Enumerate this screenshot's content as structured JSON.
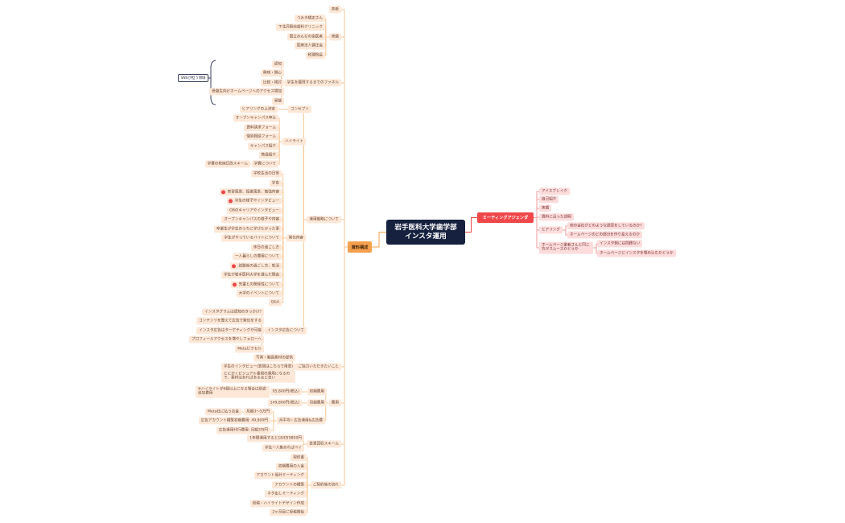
{
  "central": {
    "line1": "岩手医科大学歯学部",
    "line2": "インスタ運用"
  },
  "root": "資料構成",
  "agenda": {
    "title": "ミーティングアジェンダ",
    "items": [
      "アイスブレイク",
      "自己紹介",
      "実績",
      "資料に沿った説明",
      "ヒアリング",
      "ホームページ業者さんと同じ方がスムーズかどうか"
    ],
    "hearing": [
      "他の会社がどのような提案をしているのか?",
      "ホームページのどの部分を作り変えるのか"
    ],
    "hp": [
      "インスタ側には問題ない",
      "ホームページにインスタを埋め込むかどうか"
    ]
  },
  "sections": {
    "cover": "表紙",
    "results": "実績",
    "results_items": [
      "つみき矯正さん",
      "下北沢駅前歯科クリニック",
      "国立みんなの歯医者",
      "医療法人健正会",
      "税理院長"
    ],
    "funnel": "学生を獲得するまでのファネル",
    "funnel_items": [
      "認知",
      "興味・関心",
      "比較・検討",
      "受験生向けホームページへのアクセス増加",
      "受験"
    ],
    "sns_label": "SNSが担う領域",
    "strategy": "運用戦略について",
    "concept": "コンセプト",
    "concept_item": "ヒアリングの上決定",
    "highlight": "ハイライト",
    "highlight_items": [
      "オープンキャンパス申込",
      "資料請求フォーム",
      "個別相談フォーム",
      "キャンパス紹介",
      "教員紹介",
      "学費について"
    ],
    "tuition_scheme": "学費の校納日改スキーム",
    "content": "発信内容",
    "content_items": [
      "学校生活の日常",
      "学食",
      "実習風景、授業風景、勉強内容",
      "学生の様子やインタビュー",
      "OBのキャリアやインタビュー",
      "オープンキャンパスの様子や内容",
      "卒業生が学生のうちに学びたかった事",
      "学生がやっているバイトについて",
      "休日の過ごし方",
      "一人暮らしの費用について",
      "試験後の過ごし方、就活",
      "学生が岩手医科大学を選んだ理由",
      "先輩との関係性について",
      "大学のイベントについて",
      "Q&A"
    ],
    "ads": "インスタ広告について",
    "ads_items": [
      "インスタグラムは認知のきっかけ?",
      "コンテンツを整えて広告で発信をする",
      "インスタ広告はターゲティングが可能",
      "プロフィールアクセスを増やしフォローへ",
      "Metaピクセル"
    ],
    "cooperation": "ご協力いただきたいこと",
    "cooperation_items": [
      "写真・動画素材の提供",
      "学生のインタビュー(質問はこちらで用意)",
      "とにかくビジュアル重視の運用になるので、素材はあればあるほど良い"
    ],
    "cost": "費用",
    "initial": "初期費用",
    "initial_price": "95,800円(税込)",
    "initial_note": "※ハイライトが6個以上になる場合は別途追加費用",
    "monthly": "月額費用",
    "monthly_price": "149,800円(税込)",
    "ad_budget": "月平均・広告運用&広告費",
    "ad_items": [
      "月額3～5万円",
      "広告アカウント構築初期費用: 49,800円",
      "広告運用代行費用: 月額3万円"
    ],
    "meta": "Meta社に払うお金",
    "roi": "投資回収スキーム",
    "roi_items": [
      "1年間運用すると184万9800円",
      "学生一人集めればペイ"
    ],
    "flow": "ご契約後の流れ",
    "flow_items": [
      "契約書",
      "初期費用の入金",
      "アカウント設計ミーティング",
      "アカウントの構築",
      "ネタ出しミーティング",
      "投稿・ハイライトデザイン作成",
      "2ヶ月目に投稿開始"
    ]
  },
  "marked_content_items": [
    2,
    3,
    10,
    12
  ],
  "colors": {
    "central": "#16213f",
    "root": "#f6a04d",
    "agenda": "#f0474a",
    "left_node": "#fde8d8",
    "right_node": "#fcdcdc",
    "marker": "#f0474a"
  }
}
